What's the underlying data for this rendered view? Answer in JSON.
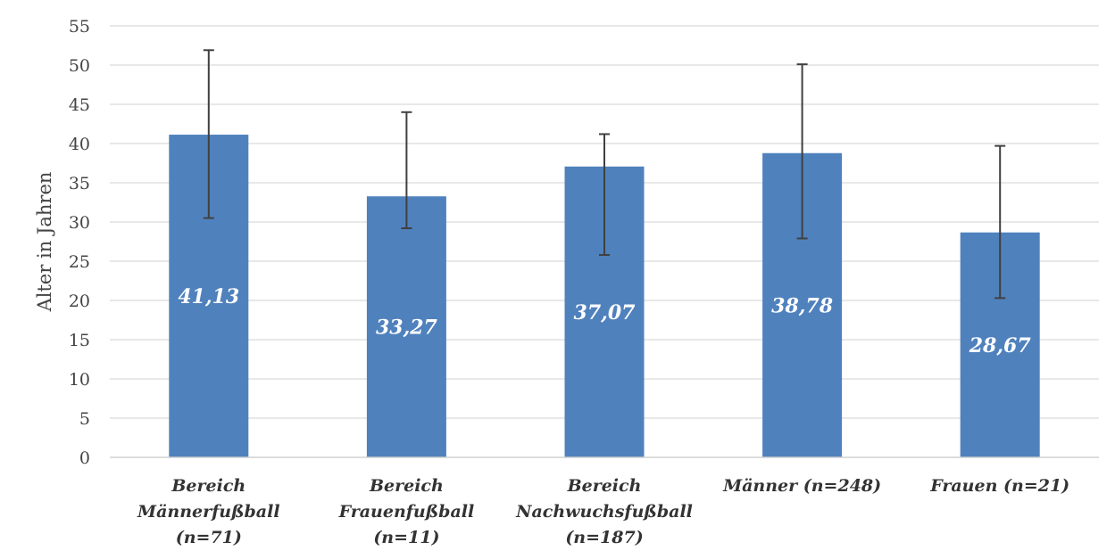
{
  "chart_data": {
    "type": "bar",
    "title": "",
    "xlabel": "",
    "ylabel": "Alter in Jahren",
    "ylim": [
      0,
      55
    ],
    "ytick_step": 5,
    "grid": true,
    "bar_color": "#4f81bd",
    "error_color": "#404040",
    "categories": [
      [
        "Bereich",
        "Männerfußball",
        "(n=71)"
      ],
      [
        "Bereich",
        "Frauenfußball",
        "(n=11)"
      ],
      [
        "Bereich",
        "Nachwuchsfußball",
        "(n=187)"
      ],
      [
        "Männer (n=248)"
      ],
      [
        "Frauen (n=21)"
      ]
    ],
    "values": [
      41.13,
      33.27,
      37.07,
      38.78,
      28.67
    ],
    "value_labels": [
      "41,13",
      "33,27",
      "37,07",
      "38,78",
      "28,67"
    ],
    "error_low": [
      30.5,
      29.2,
      25.8,
      27.9,
      20.3
    ],
    "error_high": [
      51.9,
      44.0,
      41.2,
      50.1,
      39.7
    ]
  }
}
